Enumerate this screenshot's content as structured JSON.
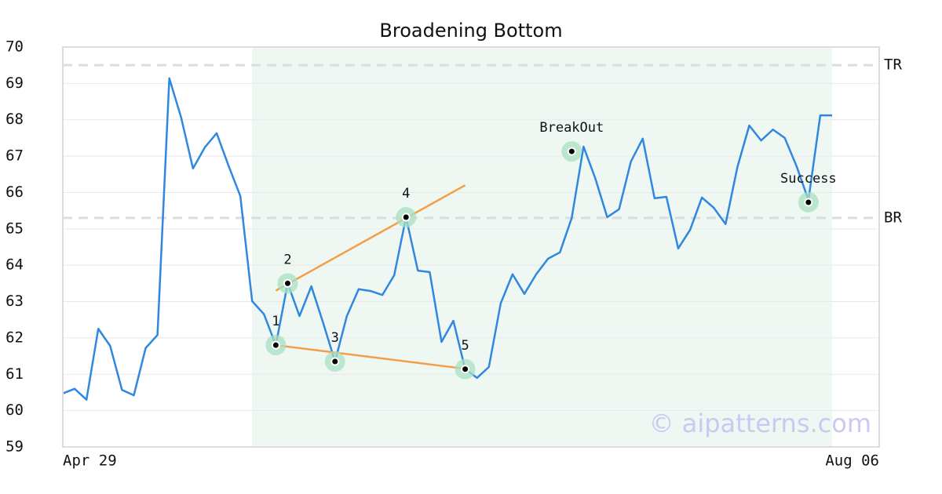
{
  "chart_data": {
    "type": "line",
    "title": "Broadening Bottom",
    "categories": [
      "Apr 29",
      null,
      null,
      null,
      null,
      null,
      null,
      null,
      null,
      null,
      null,
      null,
      null,
      null,
      null,
      null,
      null,
      null,
      null,
      null,
      null,
      null,
      null,
      null,
      null,
      null,
      null,
      null,
      null,
      null,
      null,
      null,
      null,
      null,
      null,
      null,
      null,
      null,
      null,
      null,
      null,
      null,
      null,
      null,
      null,
      null,
      null,
      null,
      null,
      null,
      null,
      null,
      null,
      null,
      null,
      null,
      null,
      null,
      null,
      null,
      null,
      null,
      null,
      null,
      null,
      "Aug 06"
    ],
    "series": [
      {
        "color": "#2f87e0",
        "values": [
          60.47,
          60.6,
          60.3,
          62.25,
          61.78,
          60.57,
          60.42,
          61.72,
          62.08,
          69.14,
          68.06,
          66.66,
          67.24,
          67.63,
          66.74,
          65.9,
          63.01,
          62.65,
          61.8,
          63.5,
          62.6,
          63.42,
          62.41,
          61.35,
          62.6,
          63.34,
          63.29,
          63.18,
          63.72,
          65.32,
          63.85,
          63.81,
          61.89,
          62.47,
          61.14,
          60.9,
          61.2,
          62.95,
          63.75,
          63.21,
          63.75,
          64.18,
          64.35,
          65.3,
          67.26,
          66.38,
          65.32,
          65.54,
          66.85,
          67.48,
          65.84,
          65.88,
          64.46,
          64.97,
          65.86,
          65.58,
          65.13,
          66.7,
          67.84,
          67.43,
          67.73,
          67.5,
          66.72,
          65.79,
          68.12,
          68.12
        ]
      }
    ],
    "ylim": [
      59,
      70
    ],
    "yticks": [
      59,
      60,
      61,
      62,
      63,
      64,
      65,
      66,
      67,
      68,
      69,
      70
    ],
    "grid": true,
    "reference_lines": [
      {
        "label": "TR",
        "value": 69.5
      },
      {
        "label": "BR",
        "value": 65.3
      }
    ],
    "trend_lines": [
      {
        "color": "#f59d45",
        "x": [
          18,
          34
        ],
        "y": [
          63.3,
          66.2
        ]
      },
      {
        "color": "#f59d45",
        "x": [
          18,
          34
        ],
        "y": [
          61.8,
          61.15
        ]
      }
    ],
    "pattern_points": [
      {
        "label": "1",
        "index": 18,
        "y": 61.8
      },
      {
        "label": "2",
        "index": 19,
        "y": 63.5
      },
      {
        "label": "3",
        "index": 23,
        "y": 61.35
      },
      {
        "label": "4",
        "index": 29,
        "y": 65.32
      },
      {
        "label": "5",
        "index": 34,
        "y": 61.14
      },
      {
        "label": "BreakOut",
        "index": 43,
        "y": 67.13
      },
      {
        "label": "Success",
        "index": 63,
        "y": 65.73
      }
    ],
    "watermark": "© aipatterns.com"
  }
}
